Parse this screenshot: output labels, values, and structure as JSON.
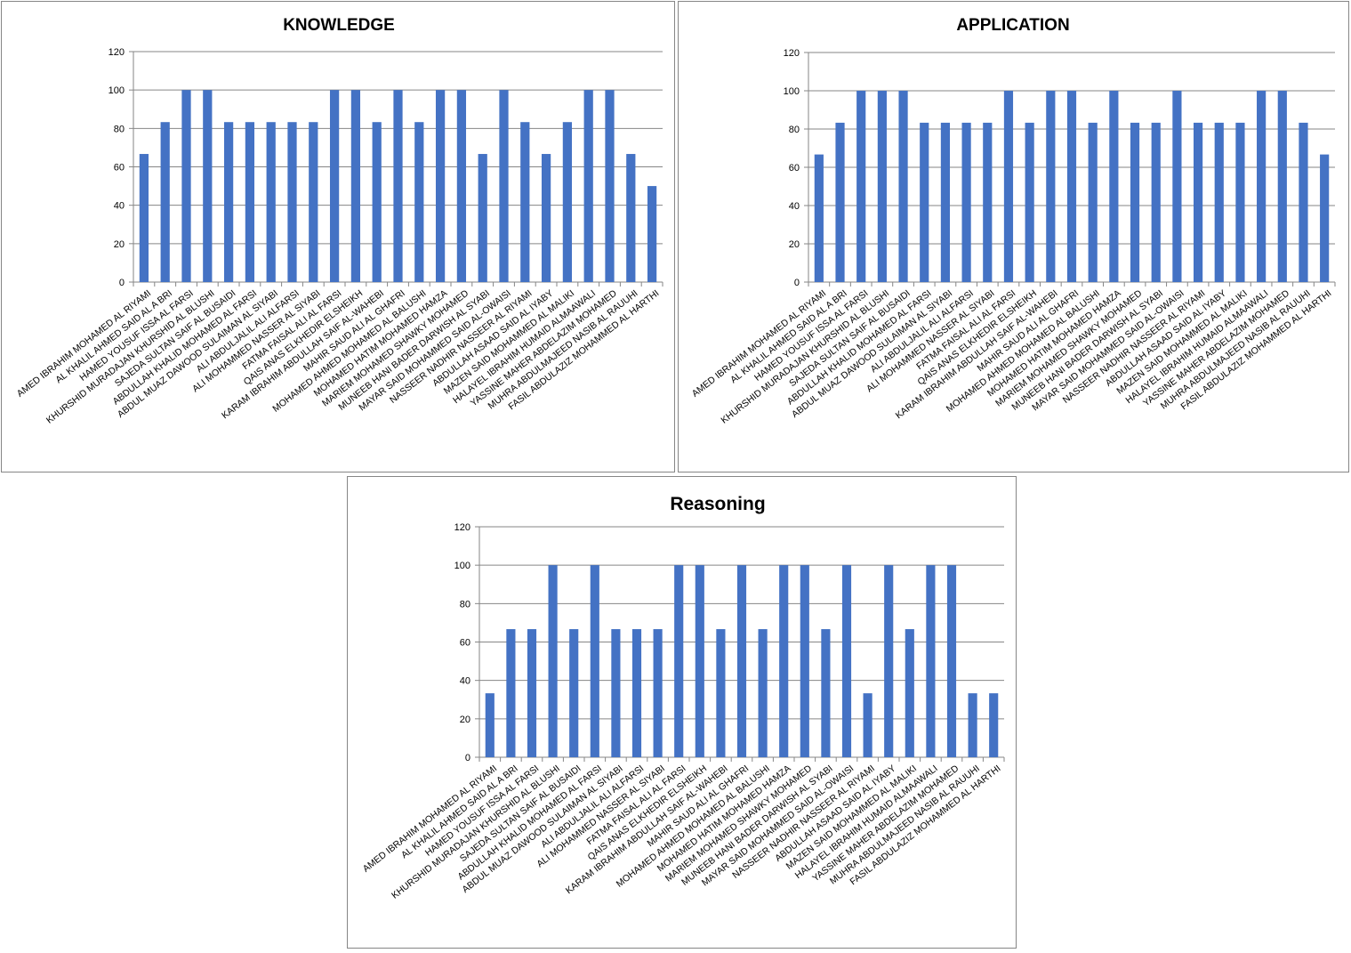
{
  "colors": {
    "bar": "#4472c4",
    "grid": "#868686",
    "axis": "#868686",
    "border": "#868686"
  },
  "chart_data": [
    {
      "type": "bar",
      "title": "KNOWLEDGE",
      "xlabel": "",
      "ylabel": "",
      "ylim": [
        0,
        120
      ],
      "yticks": [
        "0",
        "20",
        "40",
        "60",
        "80",
        "100",
        "120"
      ],
      "grid": true,
      "categories": [
        "AMED IBRAHIM MOHAMED AL RIYAMI",
        "AL KHALIL AHMED SAID AL A BRI",
        "HAMED YOUSUF ISSA AL FARSI",
        "KHURSHID MURADAJAN KHURSHID AL BLUSHI",
        "SAJEDA SULTAN SAIF AL BUSAIDI",
        "ABDULLAH KHALID MOHAMED AL FARSI",
        "ABDUL MUAZ DAWOOD SULAIMAN AL SIYABI",
        "ALI ABDULJALIL ALI ALFARSI",
        "ALI MOHAMMED NASSER AL SIYABI",
        "FATMA FAISAL ALI AL FARSI",
        "QAIS ANAS ELKHEDIR ELSHEIKH",
        "KARAM IBRAHIM ABDULLAH SAIF AL-WAHEBI",
        "MAHIR SAUD ALI AL GHAFRI",
        "MOHAMED AHMED MOHAMED AL BALUSHI",
        "MOHAMED HATIM MOHAMED HAMZA",
        "MARIEM MOHAMED SHAWKY MOHAMED",
        "MUNEEB HANI BADER DARWISH AL SYABI",
        "MAYAR SAID MOHAMMED SAID AL-OWAISI",
        "NASSEER NADHIR NASSEER AL RIYAMI",
        "ABDULLAH ASAAD SAID AL IYABY",
        "MAZEN SAID MOHAMMED AL MALIKI",
        "HALAYEL IBRAHIM HUMAID ALMAAWALI",
        "YASSINE MAHER ABDELAZIM MOHAMED",
        "MUHRA ABDULMAJEED NASIB AL RAUUHI",
        "FASIL ABDULAZIZ MOHAMMED AL HARTHI"
      ],
      "values": [
        66.7,
        83.3,
        100,
        100,
        83.3,
        83.3,
        83.3,
        83.3,
        83.3,
        100,
        100,
        83.3,
        100,
        83.3,
        100,
        100,
        66.7,
        100,
        83.3,
        66.7,
        83.3,
        100,
        100,
        66.7,
        50
      ]
    },
    {
      "type": "bar",
      "title": "APPLICATION",
      "xlabel": "",
      "ylabel": "",
      "ylim": [
        0,
        120
      ],
      "yticks": [
        "0",
        "20",
        "40",
        "60",
        "80",
        "100",
        "120"
      ],
      "grid": true,
      "categories": [
        "AMED IBRAHIM MOHAMED AL RIYAMI",
        "AL KHALIL AHMED SAID AL A BRI",
        "HAMED YOUSUF ISSA AL FARSI",
        "KHURSHID MURADAJAN KHURSHID AL BLUSHI",
        "SAJEDA SULTAN SAIF AL BUSAIDI",
        "ABDULLAH KHALID MOHAMED AL FARSI",
        "ABDUL MUAZ DAWOOD SULAIMAN AL SIYABI",
        "ALI ABDULJALIL ALI ALFARSI",
        "ALI MOHAMMED NASSER AL SIYABI",
        "FATMA FAISAL ALI AL FARSI",
        "QAIS ANAS ELKHEDIR ELSHEIKH",
        "KARAM IBRAHIM ABDULLAH SAIF AL-WAHEBI",
        "MAHIR SAUD ALI AL GHAFRI",
        "MOHAMED AHMED MOHAMED AL BALUSHI",
        "MOHAMED HATIM MOHAMED HAMZA",
        "MARIEM MOHAMED SHAWKY MOHAMED",
        "MUNEEB HANI BADER DARWISH AL SYABI",
        "MAYAR SAID MOHAMMED SAID AL-OWAISI",
        "NASSEER NADHIR NASSEER AL RIYAMI",
        "ABDULLAH ASAAD SAID AL IYABY",
        "MAZEN SAID MOHAMMED AL MALIKI",
        "HALAYEL IBRAHIM HUMAID ALMAAWALI",
        "YASSINE MAHER ABDELAZIM MOHAMED",
        "MUHRA ABDULMAJEED NASIB AL RAUUHI",
        "FASIL ABDULAZIZ MOHAMMED AL HARTHI"
      ],
      "values": [
        66.7,
        83.3,
        100,
        100,
        100,
        83.3,
        83.3,
        83.3,
        83.3,
        100,
        83.3,
        100,
        100,
        83.3,
        100,
        83.3,
        83.3,
        100,
        83.3,
        83.3,
        83.3,
        100,
        100,
        83.3,
        66.7
      ]
    },
    {
      "type": "bar",
      "title": "Reasoning",
      "xlabel": "",
      "ylabel": "",
      "ylim": [
        0,
        120
      ],
      "yticks": [
        "0",
        "20",
        "40",
        "60",
        "80",
        "100",
        "120"
      ],
      "grid": true,
      "categories": [
        "AMED IBRAHIM MOHAMED AL RIYAMI",
        "AL KHALIL AHMED SAID AL A BRI",
        "HAMED YOUSUF ISSA AL FARSI",
        "KHURSHID MURADAJAN KHURSHID AL BLUSHI",
        "SAJEDA SULTAN SAIF AL BUSAIDI",
        "ABDULLAH KHALID MOHAMED AL FARSI",
        "ABDUL MUAZ DAWOOD SULAIMAN AL SIYABI",
        "ALI ABDULJALIL ALI ALFARSI",
        "ALI MOHAMMED NASSER AL SIYABI",
        "FATMA FAISAL ALI AL FARSI",
        "QAIS ANAS ELKHEDIR ELSHEIKH",
        "KARAM IBRAHIM ABDULLAH SAIF AL-WAHEBI",
        "MAHIR SAUD ALI AL GHAFRI",
        "MOHAMED AHMED MOHAMED AL BALUSHI",
        "MOHAMED HATIM MOHAMED HAMZA",
        "MARIEM MOHAMED SHAWKY MOHAMED",
        "MUNEEB HANI BADER DARWISH AL SYABI",
        "MAYAR SAID MOHAMMED SAID AL-OWAISI",
        "NASSEER NADHIR NASSEER AL RIYAMI",
        "ABDULLAH ASAAD SAID AL IYABY",
        "MAZEN SAID MOHAMMED AL MALIKI",
        "HALAYEL IBRAHIM HUMAID ALMAAWALI",
        "YASSINE MAHER ABDELAZIM MOHAMED",
        "MUHRA ABDULMAJEED NASIB AL RAUUHI",
        "FASIL ABDULAZIZ MOHAMMED AL HARTHI"
      ],
      "values": [
        33.3,
        66.7,
        66.7,
        100,
        66.7,
        100,
        66.7,
        66.7,
        66.7,
        100,
        100,
        66.7,
        100,
        66.7,
        100,
        100,
        66.7,
        100,
        33.3,
        100,
        66.7,
        100,
        100,
        33.3,
        33.3
      ]
    }
  ]
}
